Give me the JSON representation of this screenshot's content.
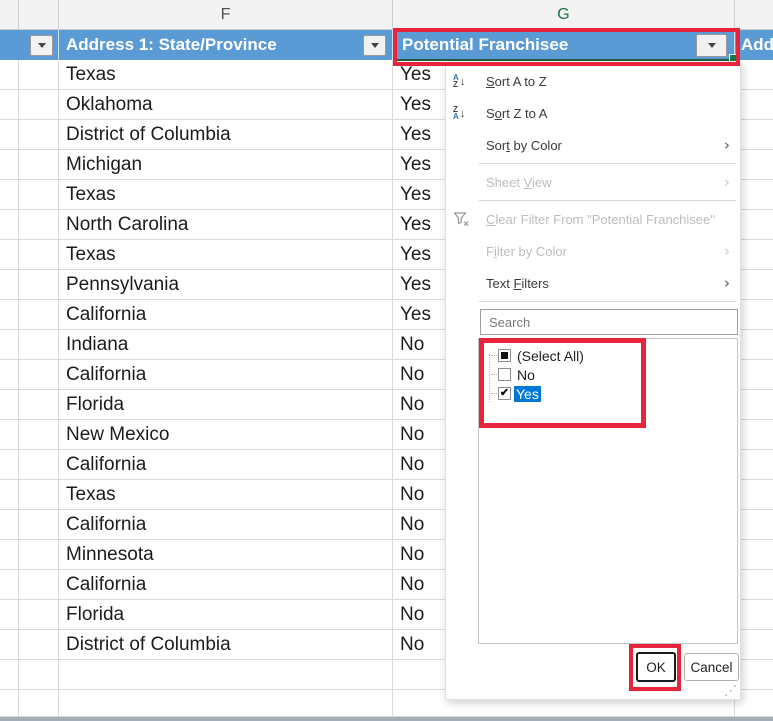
{
  "column_letters": {
    "f": "F",
    "g": "G"
  },
  "table": {
    "headers": {
      "state": "Address 1: State/Province",
      "franchisee": "Potential Franchisee",
      "next_partial": "Add"
    },
    "rows": [
      {
        "state": "Texas",
        "franchisee": "Yes"
      },
      {
        "state": "Oklahoma",
        "franchisee": "Yes"
      },
      {
        "state": "District of Columbia",
        "franchisee": "Yes"
      },
      {
        "state": "Michigan",
        "franchisee": "Yes"
      },
      {
        "state": "Texas",
        "franchisee": "Yes"
      },
      {
        "state": "North Carolina",
        "franchisee": "Yes"
      },
      {
        "state": "Texas",
        "franchisee": "Yes"
      },
      {
        "state": "Pennsylvania",
        "franchisee": "Yes"
      },
      {
        "state": "California",
        "franchisee": "Yes"
      },
      {
        "state": "Indiana",
        "franchisee": "No"
      },
      {
        "state": "California",
        "franchisee": "No"
      },
      {
        "state": "Florida",
        "franchisee": "No"
      },
      {
        "state": "New Mexico",
        "franchisee": "No"
      },
      {
        "state": "California",
        "franchisee": "No"
      },
      {
        "state": "Texas",
        "franchisee": "No"
      },
      {
        "state": "California",
        "franchisee": "No"
      },
      {
        "state": "Minnesota",
        "franchisee": "No"
      },
      {
        "state": "California",
        "franchisee": "No"
      },
      {
        "state": "Florida",
        "franchisee": "No"
      },
      {
        "state": "District of Columbia",
        "franchisee": "No"
      }
    ]
  },
  "filter_menu": {
    "items": [
      {
        "label": "Sort A to Z",
        "underline": 0,
        "icon": "sort-az-icon",
        "submenu": false,
        "enabled": true
      },
      {
        "label": "Sort Z to A",
        "underline": 1,
        "icon": "sort-za-icon",
        "submenu": false,
        "enabled": true
      },
      {
        "label": "Sort by Color",
        "underline": 3,
        "icon": null,
        "submenu": true,
        "enabled": true
      },
      {
        "type": "separator"
      },
      {
        "label": "Sheet View",
        "underline": 6,
        "icon": null,
        "submenu": true,
        "enabled": false
      },
      {
        "type": "separator"
      },
      {
        "label": "Clear Filter From \"Potential Franchisee\"",
        "underline": 0,
        "icon": "clear-filter-icon",
        "submenu": false,
        "enabled": false
      },
      {
        "label": "Filter by Color",
        "underline": 1,
        "icon": null,
        "submenu": true,
        "enabled": false
      },
      {
        "label": "Text Filters",
        "underline": 5,
        "icon": null,
        "submenu": true,
        "enabled": true
      },
      {
        "type": "separator"
      }
    ],
    "search_placeholder": "Search",
    "checkbox_items": [
      {
        "label": "(Select All)",
        "state": "indeterminate",
        "highlighted": false
      },
      {
        "label": "No",
        "state": "unchecked",
        "highlighted": false
      },
      {
        "label": "Yes",
        "state": "checked",
        "highlighted": true
      }
    ],
    "ok_label": "OK",
    "cancel_label": "Cancel"
  },
  "colors": {
    "header_blue": "#5b9bd5",
    "annotation_red": "#e8243c",
    "selection_green": "#1b5e3a",
    "highlight_blue": "#0078d7",
    "column_letter_green": "#217346"
  }
}
